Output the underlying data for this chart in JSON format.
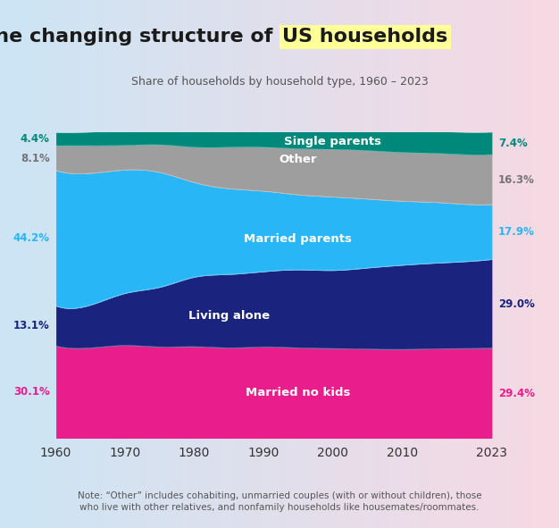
{
  "title_plain": "The changing structure of ",
  "title_highlight": "US households",
  "subtitle": "Share of households by household type, 1960 – 2023",
  "note": "Note: “Other” includes cohabiting, unmarried couples (with or without children), those\nwho live with other relatives, and nonfamily households like housemates/roommates.",
  "years": [
    1960,
    1965,
    1970,
    1975,
    1980,
    1985,
    1990,
    1995,
    2000,
    2005,
    2010,
    2015,
    2020,
    2023
  ],
  "series": {
    "Married no kids": [
      30.1,
      29.5,
      30.3,
      29.8,
      29.9,
      29.5,
      29.8,
      29.5,
      29.3,
      29.1,
      29.0,
      29.2,
      29.3,
      29.4
    ],
    "Living alone": [
      13.1,
      14.0,
      17.0,
      19.5,
      22.7,
      24.0,
      24.6,
      25.5,
      25.5,
      26.5,
      27.5,
      28.0,
      28.5,
      29.0
    ],
    "Married parents": [
      44.2,
      43.0,
      40.3,
      37.5,
      30.9,
      28.0,
      26.3,
      24.5,
      24.0,
      22.5,
      20.9,
      19.8,
      18.5,
      17.9
    ],
    "Other": [
      8.1,
      9.0,
      8.0,
      9.0,
      11.5,
      13.5,
      14.3,
      15.0,
      15.5,
      15.8,
      15.9,
      16.0,
      16.2,
      16.3
    ],
    "Single parents": [
      4.4,
      4.5,
      5.1,
      5.5,
      5.7,
      6.5,
      7.0,
      7.2,
      7.3,
      7.2,
      7.2,
      7.2,
      7.4,
      7.4
    ]
  },
  "colors": {
    "Married no kids": "#E91E8C",
    "Living alone": "#1A237E",
    "Married parents": "#29B6F6",
    "Other": "#9E9E9E",
    "Single parents": "#00897B"
  },
  "left_labels": {
    "Single parents": "4.4%",
    "Other": "8.1%",
    "Married parents": "44.2%",
    "Living alone": "13.1%",
    "Married no kids": "30.1%"
  },
  "right_labels": {
    "Single parents": "7.4%",
    "Other": "16.3%",
    "Married parents": "17.9%",
    "Living alone": "29.0%",
    "Married no kids": "29.4%"
  },
  "label_colors": {
    "Single parents": "#00897B",
    "Other": "#757575",
    "Married parents": "#29B6F6",
    "Living alone": "#1A237E",
    "Married no kids": "#E91E8C"
  },
  "background_gradient_left": "#D6EAF8",
  "background_gradient_right": "#FADBD8",
  "xlim": [
    1960,
    2023
  ],
  "ylim": [
    0,
    100
  ],
  "xticks": [
    1960,
    1970,
    1980,
    1990,
    2000,
    2010,
    2023
  ]
}
